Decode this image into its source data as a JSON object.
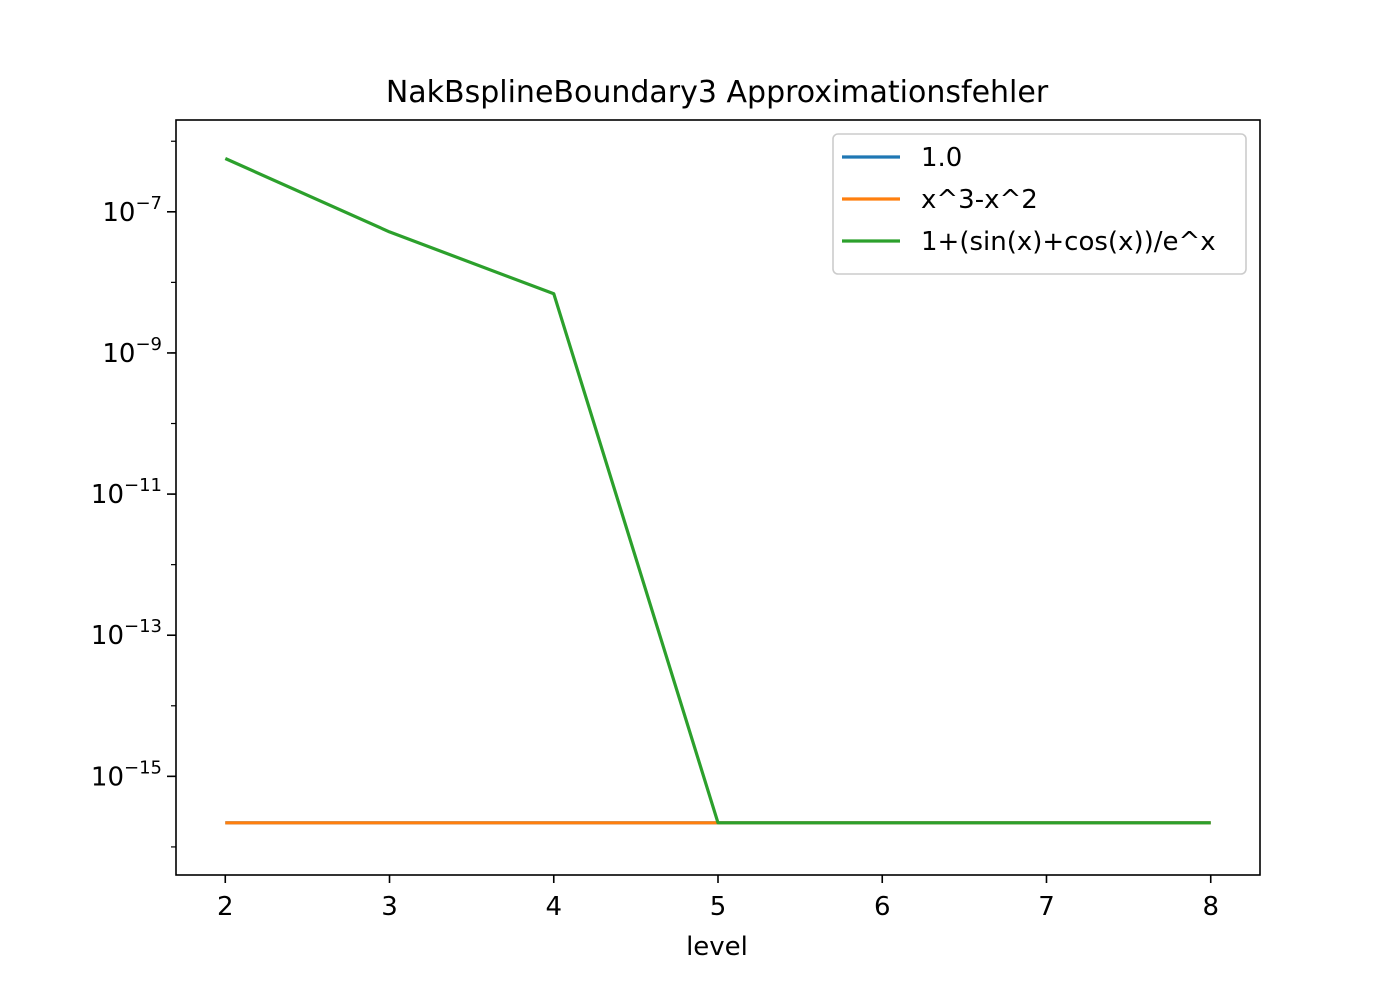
{
  "chart_data": {
    "type": "line",
    "title": "NakBsplineBoundary3 Approximationsfehler",
    "xlabel": "level",
    "ylabel": "",
    "x": [
      2,
      3,
      4,
      5,
      6,
      7,
      8
    ],
    "xticks": [
      "2",
      "3",
      "4",
      "5",
      "6",
      "7",
      "8"
    ],
    "xlim": [
      1.7,
      8.3
    ],
    "yscale": "log",
    "ylim": [
      4e-17,
      2e-06
    ],
    "yticks": [
      {
        "base": "10",
        "exp": "−7",
        "value": 1e-07
      },
      {
        "base": "10",
        "exp": "−9",
        "value": 1e-09
      },
      {
        "base": "10",
        "exp": "−11",
        "value": 1e-11
      },
      {
        "base": "10",
        "exp": "−13",
        "value": 1e-13
      },
      {
        "base": "10",
        "exp": "−15",
        "value": 1e-15
      }
    ],
    "grid": false,
    "legend_position": "top-right",
    "series": [
      {
        "name": "1.0",
        "color": "#1f77b4",
        "values": [
          2.2e-16,
          2.2e-16,
          2.2e-16,
          2.2e-16,
          2.2e-16,
          2.2e-16,
          2.2e-16
        ]
      },
      {
        "name": "x^3-x^2",
        "color": "#ff7f0e",
        "values": [
          2.2e-16,
          2.2e-16,
          2.2e-16,
          2.2e-16,
          2.2e-16,
          2.2e-16,
          2.2e-16
        ]
      },
      {
        "name": "1+(sin(x)+cos(x))/e^x",
        "color": "#2ca02c",
        "values": [
          5.7e-07,
          5.2e-08,
          6.9e-09,
          2.2e-16,
          2.2e-16,
          2.2e-16,
          2.2e-16
        ]
      }
    ]
  }
}
